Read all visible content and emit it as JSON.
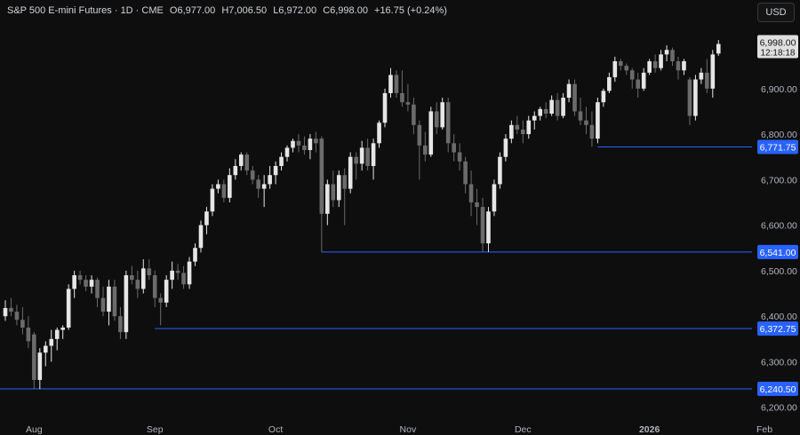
{
  "header": {
    "symbol": "S&P 500 E-mini Futures · 1D · CME",
    "open": "O6,977.00",
    "high": "H7,006.50",
    "low": "L6,972.00",
    "close": "C6,998.00",
    "change": "+16.75 (+0.24%)"
  },
  "currency_button": "USD",
  "colors": {
    "background": "#0e0e0e",
    "bull": "#e6e6e6",
    "bear": "#6b6b6b",
    "level_line": "#2962ff",
    "level_label": "#2962ff",
    "price_label": "#e0e0e0"
  },
  "chart_data": {
    "type": "candlestick",
    "y_axis": {
      "ylim": [
        6180,
        7040
      ],
      "ticks": [
        {
          "value": 6900,
          "label": "6,900.00"
        },
        {
          "value": 6800,
          "label": "6,800.00"
        },
        {
          "value": 6700,
          "label": "6,700.00"
        },
        {
          "value": 6600,
          "label": "6,600.00"
        },
        {
          "value": 6500,
          "label": "6,500.00"
        },
        {
          "value": 6400,
          "label": "6,400.00"
        },
        {
          "value": 6300,
          "label": "6,300.00"
        },
        {
          "value": 6200,
          "label": "6,200.00"
        }
      ]
    },
    "x_axis": {
      "ticks": [
        {
          "label": "Aug",
          "bar": 5,
          "bold": false
        },
        {
          "label": "Sep",
          "bar": 26,
          "bold": false
        },
        {
          "label": "Oct",
          "bar": 47,
          "bold": false
        },
        {
          "label": "Nov",
          "bar": 70,
          "bold": false
        },
        {
          "label": "Dec",
          "bar": 90,
          "bold": false
        },
        {
          "label": "2026",
          "bar": 112,
          "bold": true
        },
        {
          "label": "Feb",
          "bar": 132,
          "bold": false
        }
      ]
    },
    "last_price": {
      "value": 6998.0,
      "label": "6,998.00",
      "countdown": "12:18:18"
    },
    "levels": [
      {
        "value": 6771.75,
        "label": "6,771.75",
        "from_bar": 103
      },
      {
        "value": 6541.0,
        "label": "6,541.00",
        "from_bar": 55
      },
      {
        "value": 6372.75,
        "label": "6,372.75",
        "from_bar": 26
      },
      {
        "value": 6240.5,
        "label": "6,240.50",
        "from_bar": 0
      }
    ],
    "candles": [
      [
        6400,
        6435,
        6390,
        6418
      ],
      [
        6418,
        6440,
        6400,
        6410
      ],
      [
        6410,
        6425,
        6380,
        6392
      ],
      [
        6392,
        6420,
        6360,
        6375
      ],
      [
        6375,
        6400,
        6330,
        6345
      ],
      [
        6360,
        6365,
        6240,
        6260
      ],
      [
        6260,
        6330,
        6240,
        6320
      ],
      [
        6320,
        6345,
        6290,
        6335
      ],
      [
        6335,
        6370,
        6300,
        6350
      ],
      [
        6350,
        6375,
        6325,
        6370
      ],
      [
        6370,
        6380,
        6350,
        6375
      ],
      [
        6375,
        6470,
        6370,
        6460
      ],
      [
        6460,
        6500,
        6440,
        6490
      ],
      [
        6490,
        6500,
        6470,
        6480
      ],
      [
        6480,
        6490,
        6455,
        6465
      ],
      [
        6465,
        6490,
        6450,
        6480
      ],
      [
        6480,
        6485,
        6420,
        6440
      ],
      [
        6440,
        6465,
        6400,
        6410
      ],
      [
        6410,
        6480,
        6380,
        6465
      ],
      [
        6465,
        6480,
        6390,
        6400
      ],
      [
        6400,
        6420,
        6350,
        6365
      ],
      [
        6365,
        6500,
        6350,
        6490
      ],
      [
        6490,
        6510,
        6470,
        6480
      ],
      [
        6480,
        6500,
        6440,
        6460
      ],
      [
        6460,
        6525,
        6450,
        6505
      ],
      [
        6505,
        6525,
        6480,
        6490
      ],
      [
        6490,
        6500,
        6420,
        6440
      ],
      [
        6440,
        6450,
        6380,
        6430
      ],
      [
        6430,
        6490,
        6420,
        6480
      ],
      [
        6480,
        6520,
        6460,
        6500
      ],
      [
        6500,
        6515,
        6480,
        6495
      ],
      [
        6495,
        6510,
        6460,
        6470
      ],
      [
        6470,
        6530,
        6460,
        6520
      ],
      [
        6520,
        6560,
        6510,
        6550
      ],
      [
        6550,
        6610,
        6540,
        6600
      ],
      [
        6600,
        6640,
        6580,
        6630
      ],
      [
        6630,
        6690,
        6620,
        6680
      ],
      [
        6680,
        6700,
        6670,
        6690
      ],
      [
        6690,
        6700,
        6650,
        6660
      ],
      [
        6660,
        6725,
        6650,
        6710
      ],
      [
        6710,
        6745,
        6700,
        6730
      ],
      [
        6730,
        6760,
        6720,
        6755
      ],
      [
        6755,
        6760,
        6710,
        6720
      ],
      [
        6720,
        6730,
        6690,
        6700
      ],
      [
        6700,
        6710,
        6660,
        6680
      ],
      [
        6680,
        6710,
        6640,
        6690
      ],
      [
        6690,
        6730,
        6680,
        6710
      ],
      [
        6710,
        6740,
        6690,
        6730
      ],
      [
        6730,
        6760,
        6720,
        6750
      ],
      [
        6750,
        6775,
        6740,
        6770
      ],
      [
        6770,
        6790,
        6760,
        6785
      ],
      [
        6785,
        6800,
        6760,
        6775
      ],
      [
        6775,
        6795,
        6755,
        6765
      ],
      [
        6765,
        6800,
        6745,
        6790
      ],
      [
        6790,
        6805,
        6760,
        6780
      ],
      [
        6790,
        6795,
        6541,
        6625
      ],
      [
        6625,
        6700,
        6600,
        6690
      ],
      [
        6690,
        6720,
        6640,
        6655
      ],
      [
        6655,
        6720,
        6640,
        6710
      ],
      [
        6710,
        6725,
        6600,
        6680
      ],
      [
        6680,
        6760,
        6670,
        6750
      ],
      [
        6750,
        6760,
        6700,
        6735
      ],
      [
        6735,
        6785,
        6720,
        6770
      ],
      [
        6770,
        6790,
        6720,
        6730
      ],
      [
        6730,
        6790,
        6700,
        6780
      ],
      [
        6780,
        6830,
        6770,
        6825
      ],
      [
        6825,
        6900,
        6815,
        6890
      ],
      [
        6890,
        6945,
        6880,
        6930
      ],
      [
        6930,
        6940,
        6880,
        6890
      ],
      [
        6890,
        6940,
        6860,
        6870
      ],
      [
        6870,
        6910,
        6850,
        6865
      ],
      [
        6865,
        6880,
        6800,
        6820
      ],
      [
        6820,
        6830,
        6700,
        6775
      ],
      [
        6775,
        6805,
        6740,
        6755
      ],
      [
        6755,
        6860,
        6750,
        6850
      ],
      [
        6850,
        6870,
        6800,
        6815
      ],
      [
        6815,
        6880,
        6810,
        6870
      ],
      [
        6870,
        6880,
        6760,
        6780
      ],
      [
        6780,
        6800,
        6740,
        6760
      ],
      [
        6760,
        6780,
        6720,
        6740
      ],
      [
        6740,
        6750,
        6670,
        6690
      ],
      [
        6690,
        6720,
        6620,
        6650
      ],
      [
        6650,
        6680,
        6600,
        6640
      ],
      [
        6640,
        6660,
        6541,
        6560
      ],
      [
        6560,
        6640,
        6541,
        6630
      ],
      [
        6630,
        6700,
        6620,
        6690
      ],
      [
        6690,
        6760,
        6680,
        6750
      ],
      [
        6750,
        6800,
        6740,
        6790
      ],
      [
        6790,
        6830,
        6780,
        6820
      ],
      [
        6820,
        6840,
        6800,
        6810
      ],
      [
        6810,
        6830,
        6780,
        6800
      ],
      [
        6800,
        6840,
        6790,
        6830
      ],
      [
        6830,
        6850,
        6810,
        6840
      ],
      [
        6840,
        6860,
        6830,
        6855
      ],
      [
        6855,
        6870,
        6835,
        6845
      ],
      [
        6845,
        6885,
        6840,
        6875
      ],
      [
        6875,
        6890,
        6830,
        6840
      ],
      [
        6840,
        6890,
        6835,
        6880
      ],
      [
        6880,
        6920,
        6870,
        6910
      ],
      [
        6910,
        6920,
        6840,
        6850
      ],
      [
        6850,
        6880,
        6820,
        6830
      ],
      [
        6830,
        6860,
        6800,
        6820
      ],
      [
        6820,
        6850,
        6772,
        6790
      ],
      [
        6790,
        6880,
        6780,
        6870
      ],
      [
        6870,
        6900,
        6860,
        6895
      ],
      [
        6895,
        6935,
        6890,
        6925
      ],
      [
        6925,
        6970,
        6915,
        6960
      ],
      [
        6960,
        6965,
        6940,
        6950
      ],
      [
        6950,
        6955,
        6930,
        6940
      ],
      [
        6940,
        6945,
        6900,
        6920
      ],
      [
        6920,
        6935,
        6880,
        6900
      ],
      [
        6900,
        6945,
        6895,
        6935
      ],
      [
        6935,
        6965,
        6930,
        6960
      ],
      [
        6960,
        6975,
        6935,
        6945
      ],
      [
        6945,
        6985,
        6940,
        6975
      ],
      [
        6975,
        6995,
        6960,
        6985
      ],
      [
        6985,
        6990,
        6950,
        6960
      ],
      [
        6960,
        6970,
        6920,
        6940
      ],
      [
        6940,
        6965,
        6930,
        6960
      ],
      [
        6920,
        6925,
        6820,
        6840
      ],
      [
        6840,
        6930,
        6830,
        6920
      ],
      [
        6920,
        6945,
        6910,
        6935
      ],
      [
        6935,
        6965,
        6890,
        6900
      ],
      [
        6900,
        6985,
        6880,
        6975
      ],
      [
        6977,
        7006.5,
        6972,
        6998
      ]
    ]
  }
}
